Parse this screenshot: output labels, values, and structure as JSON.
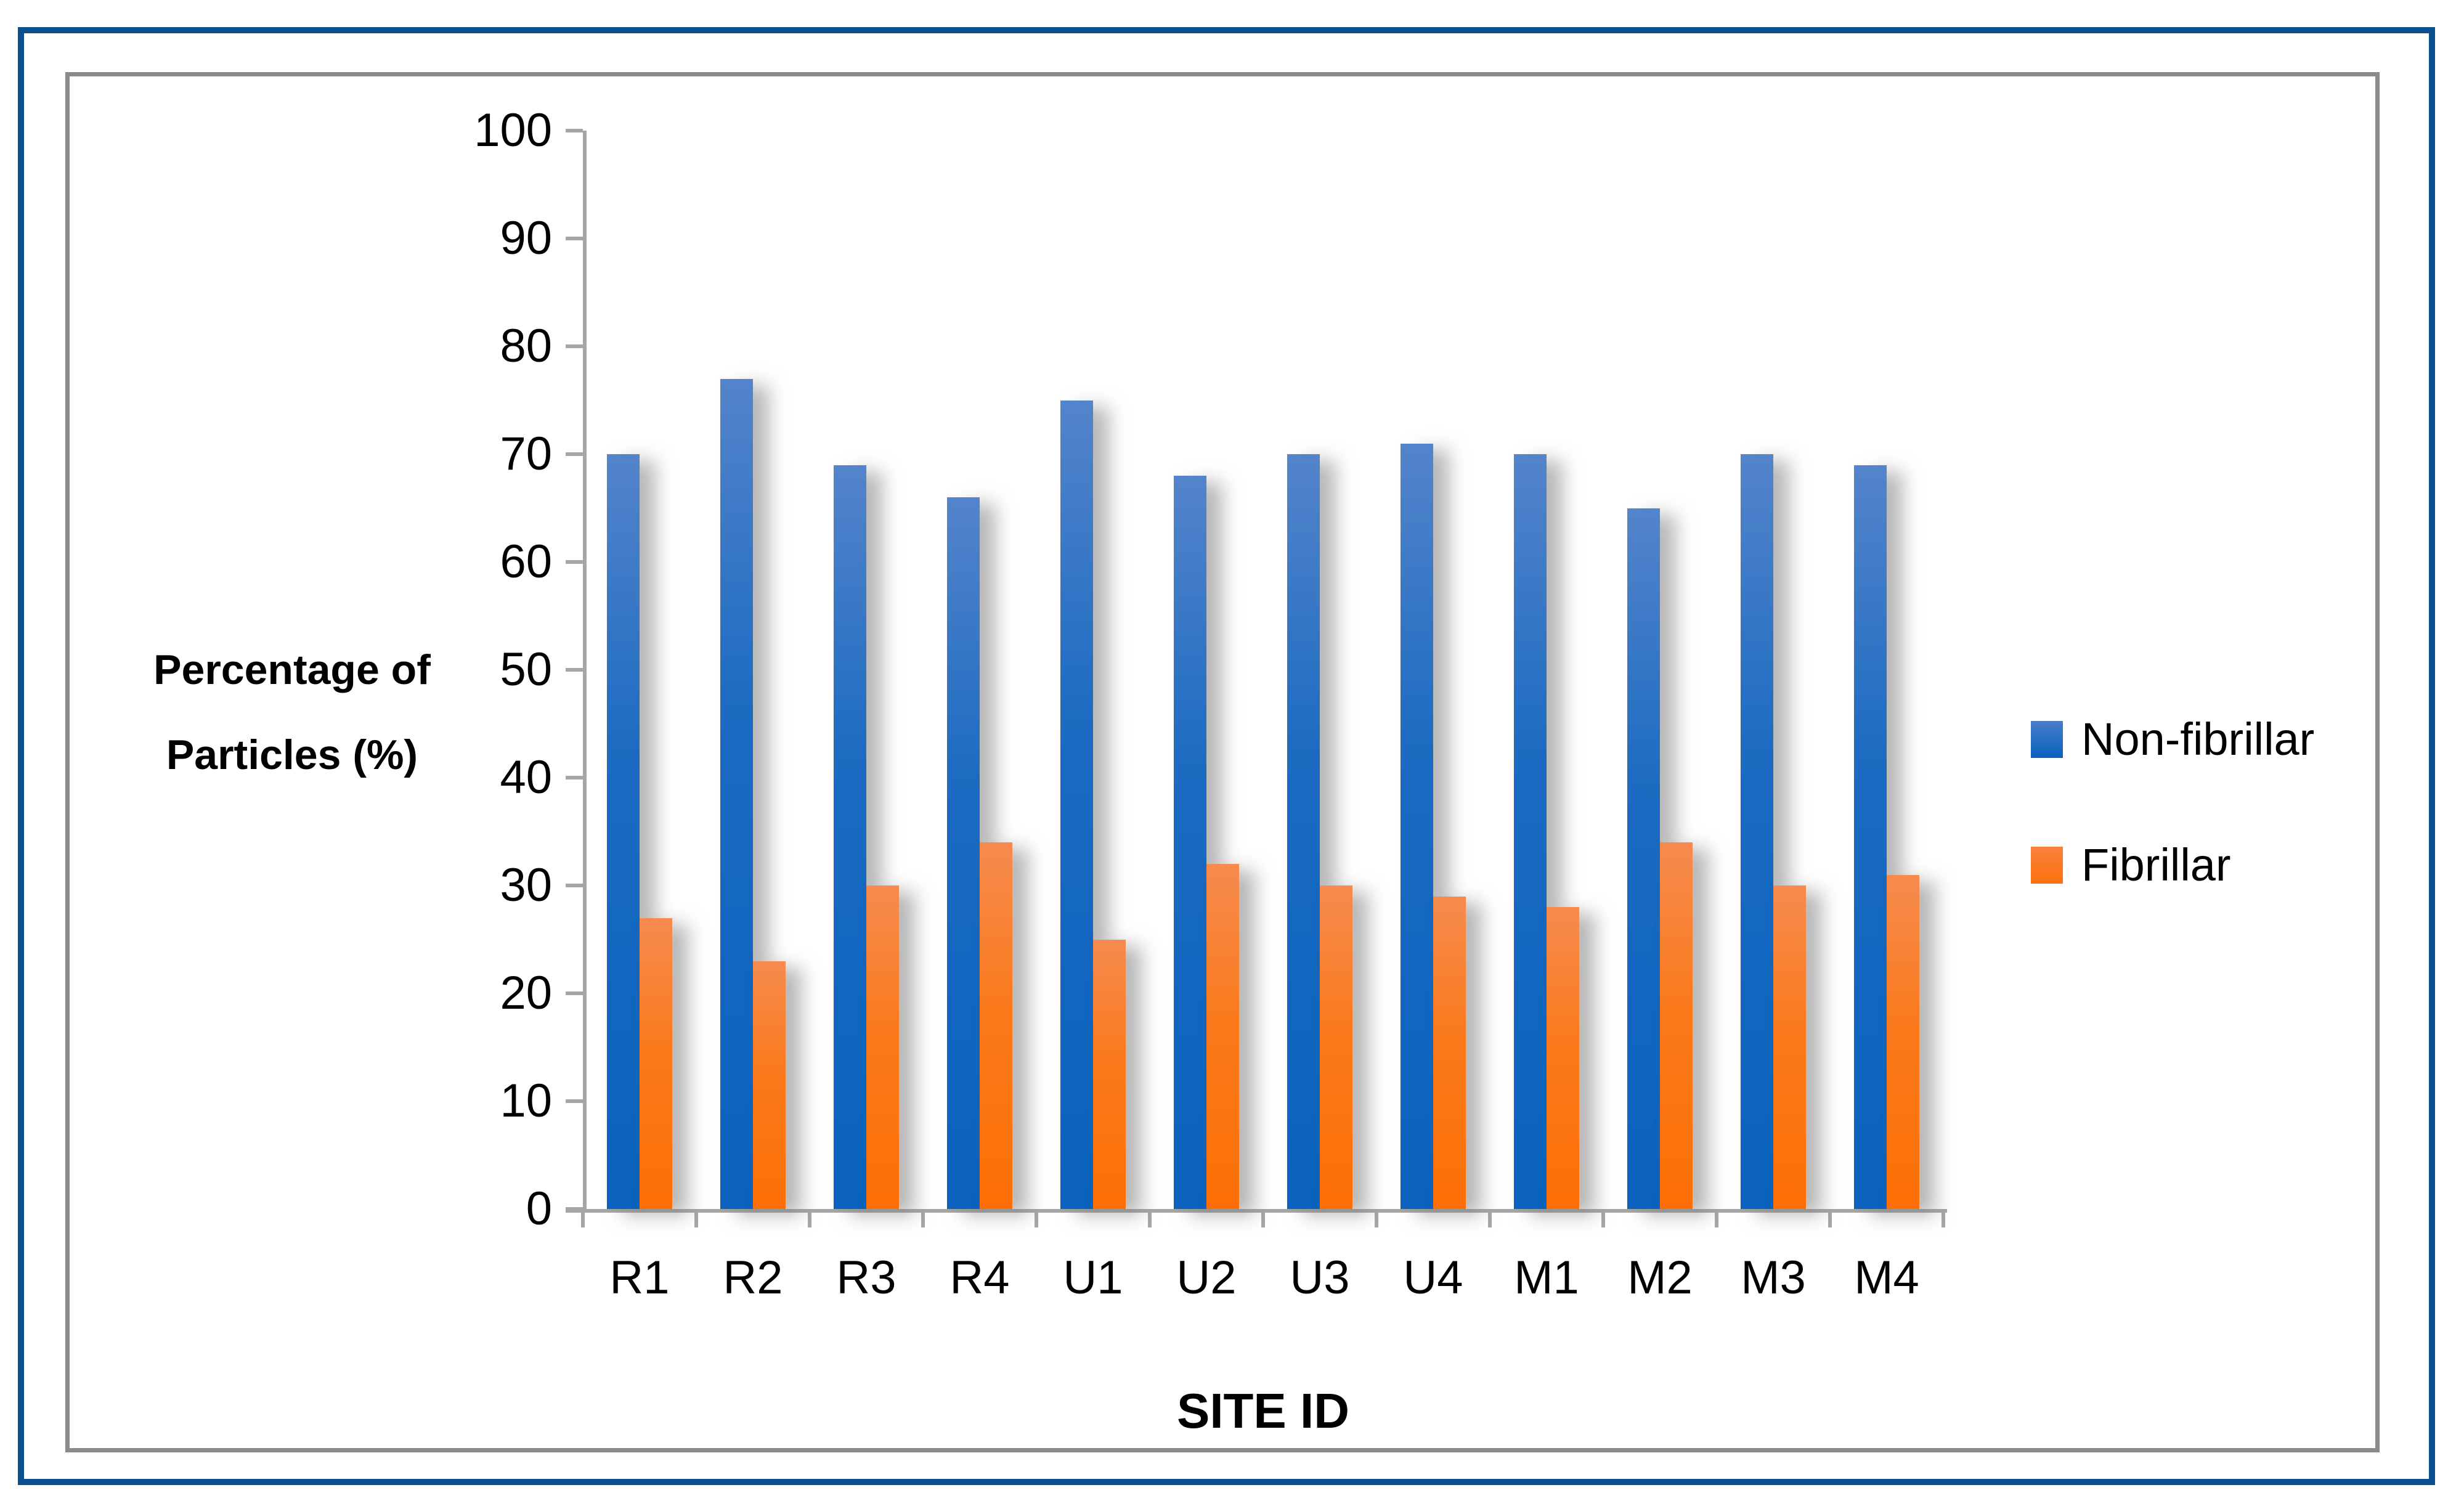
{
  "figure": {
    "outer_border_color": "#0B4F8F",
    "inner_border_color": "#8A8A8A",
    "axis_color": "#A6A6A6",
    "background_color": "#FFFFFF"
  },
  "chart_data": {
    "type": "bar",
    "title": "",
    "xlabel": "SITE ID",
    "ylabel": "Percentage of Particles (%)",
    "ylim": [
      0,
      100
    ],
    "ytick_step": 10,
    "y_tick_labels": [
      "0",
      "10",
      "20",
      "30",
      "40",
      "50",
      "60",
      "70",
      "80",
      "90",
      "100"
    ],
    "categories": [
      "R1",
      "R2",
      "R3",
      "R4",
      "U1",
      "U2",
      "U3",
      "U4",
      "M1",
      "M2",
      "M3",
      "M4"
    ],
    "series": [
      {
        "name": "Non-fibrillar",
        "color": "#0A62BE",
        "color_top": "#5484CB",
        "values": [
          70,
          77,
          69,
          66,
          75,
          68,
          70,
          71,
          70,
          65,
          70,
          69
        ]
      },
      {
        "name": "Fibrillar",
        "color": "#FD6F05",
        "color_top": "#F68B4E",
        "values": [
          27,
          23,
          30,
          34,
          25,
          32,
          30,
          29,
          28,
          34,
          30,
          31
        ]
      }
    ],
    "grid": false,
    "legend_position": "right"
  }
}
